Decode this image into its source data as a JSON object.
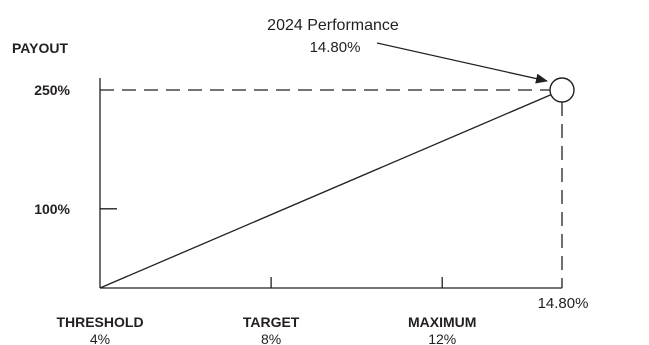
{
  "chart_data": {
    "type": "line",
    "title": "",
    "ylabel": "PAYOUT",
    "xlabel": "",
    "y_ticks": [
      {
        "label": "250%",
        "value": 250
      },
      {
        "label": "100%",
        "value": 100
      }
    ],
    "x_ticks": [
      {
        "name": "THRESHOLD",
        "label": "4%",
        "value": 4
      },
      {
        "name": "TARGET",
        "label": "8%",
        "value": 8
      },
      {
        "name": "MAXIMUM",
        "label": "12%",
        "value": 12
      }
    ],
    "x": [
      4,
      14.8
    ],
    "y": [
      0,
      250
    ],
    "xlim": [
      4,
      14.8
    ],
    "ylim": [
      0,
      250
    ],
    "grid": false,
    "legend": "none",
    "highlight_point": {
      "x": 14.8,
      "y": 250,
      "x_label": "14.80%"
    },
    "annotation": {
      "title": "2024 Performance",
      "value": "14.80%"
    },
    "colors": {
      "ink": "#231f20",
      "background": "#ffffff"
    }
  }
}
